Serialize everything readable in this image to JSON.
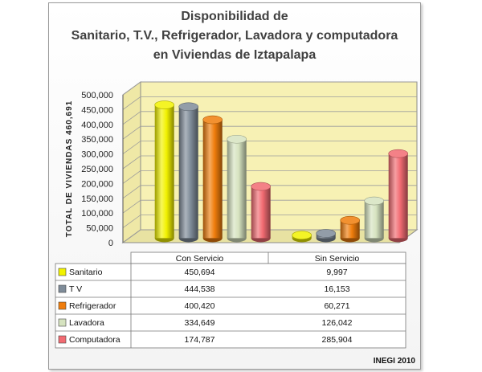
{
  "chart_data": {
    "type": "bar",
    "title_lines": [
      "Disponibilidad  de",
      "Sanitario, T.V., Refrigerador, Lavadora y computadora",
      "en Viviendas  de Iztapalapa"
    ],
    "ylabel": "TOTAL  DE  VIVIENDAS  460,691",
    "ylim": [
      0,
      500000
    ],
    "yticks": [
      "0",
      "50,000",
      "100,000",
      "150,000",
      "200,000",
      "250,000",
      "300,000",
      "350,000",
      "400,000",
      "450,000",
      "500,000"
    ],
    "categories": [
      "Con Servicio",
      "Sin Servicio"
    ],
    "series": [
      {
        "name": "Sanitario",
        "values": [
          450694,
          9997
        ],
        "labels": [
          "450,694",
          "9,997"
        ],
        "color": "#f2f200"
      },
      {
        "name": "T V",
        "values": [
          444538,
          16153
        ],
        "labels": [
          "444,538",
          "16,153"
        ],
        "color": "#7f8c99"
      },
      {
        "name": "Refrigerador",
        "values": [
          400420,
          60271
        ],
        "labels": [
          "400,420",
          "60,271"
        ],
        "color": "#f07d0c"
      },
      {
        "name": "Lavadora",
        "values": [
          334649,
          126042
        ],
        "labels": [
          "334,649",
          "126,042"
        ],
        "color": "#d6e3c0"
      },
      {
        "name": "Computadora",
        "values": [
          174787,
          285904
        ],
        "labels": [
          "174,787",
          "285,904"
        ],
        "color": "#f26b72"
      }
    ],
    "grid": true,
    "legend": "table-below"
  },
  "credit": "INEGI 2010"
}
